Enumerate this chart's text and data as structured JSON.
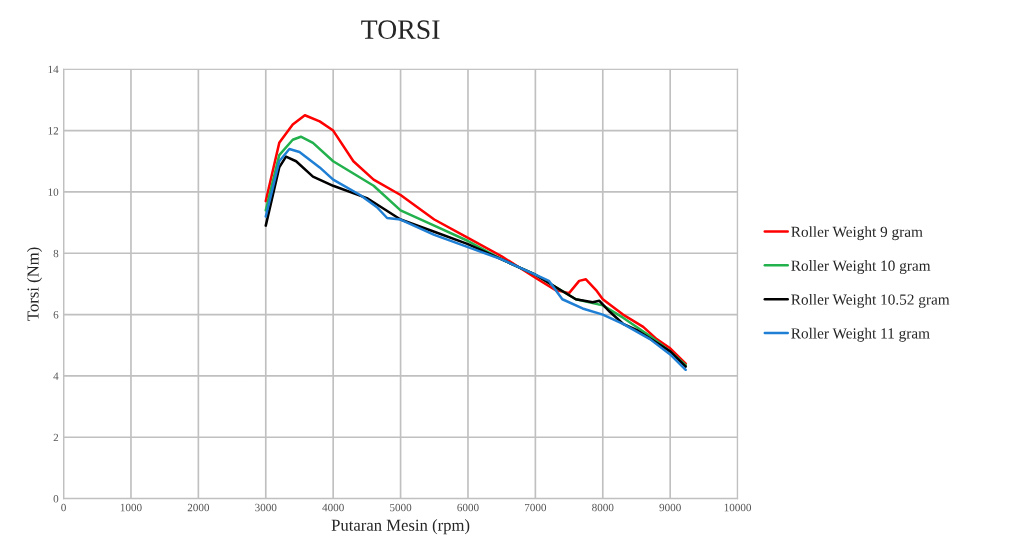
{
  "chart_data": {
    "type": "line",
    "title": "TORSI",
    "xlabel": "Putaran Mesin (rpm)",
    "ylabel": "Torsi (Nm)",
    "xlim": [
      0,
      10000
    ],
    "xticks": [
      0,
      1000,
      2000,
      3000,
      4000,
      5000,
      6000,
      7000,
      8000,
      9000,
      10000
    ],
    "ylim": [
      0,
      14
    ],
    "yticks": [
      0,
      2,
      4,
      6,
      8,
      10,
      12,
      14
    ],
    "grid": true,
    "legend": "right",
    "marker": "none",
    "line_style": "solid",
    "series": [
      {
        "name": "Roller Weight 9 gram",
        "color": "#ff0000",
        "x": [
          3000,
          3200,
          3400,
          3580,
          3800,
          4000,
          4300,
          4600,
          5000,
          5500,
          6000,
          6500,
          7000,
          7300,
          7500,
          7650,
          7750,
          7900,
          8000,
          8300,
          8600,
          8800,
          9000,
          9230
        ],
        "values": [
          9.7,
          11.6,
          12.2,
          12.5,
          12.3,
          12.0,
          11.0,
          10.4,
          9.9,
          9.1,
          8.5,
          7.9,
          7.2,
          6.8,
          6.7,
          7.1,
          7.15,
          6.8,
          6.5,
          6.0,
          5.6,
          5.2,
          4.9,
          4.4
        ]
      },
      {
        "name": "Roller Weight 10 gram",
        "color": "#22b14c",
        "x": [
          3000,
          3200,
          3400,
          3520,
          3700,
          4000,
          4300,
          4600,
          5000,
          5500,
          6000,
          6500,
          7000,
          7300,
          7600,
          8000,
          8300,
          8700,
          9000,
          9230
        ],
        "values": [
          9.4,
          11.2,
          11.7,
          11.8,
          11.6,
          11.0,
          10.6,
          10.2,
          9.4,
          8.9,
          8.4,
          7.8,
          7.3,
          6.9,
          6.5,
          6.3,
          5.9,
          5.3,
          4.8,
          4.35
        ]
      },
      {
        "name": "Roller Weight 10.52 gram",
        "color": "#000000",
        "x": [
          3000,
          3200,
          3300,
          3450,
          3700,
          4000,
          4500,
          5000,
          5500,
          6000,
          6500,
          7000,
          7300,
          7600,
          7850,
          7950,
          8100,
          8300,
          8500,
          9000,
          9230
        ],
        "values": [
          8.9,
          10.8,
          11.15,
          11.0,
          10.5,
          10.2,
          9.8,
          9.1,
          8.7,
          8.3,
          7.8,
          7.3,
          6.9,
          6.5,
          6.4,
          6.45,
          6.1,
          5.7,
          5.5,
          4.8,
          4.3
        ]
      },
      {
        "name": "Roller Weight 11 gram",
        "color": "#1f7fd4",
        "x": [
          3000,
          3200,
          3350,
          3500,
          3800,
          4000,
          4400,
          4650,
          4800,
          5000,
          5500,
          6000,
          6500,
          7000,
          7200,
          7400,
          7700,
          8000,
          8300,
          8700,
          9000,
          9230
        ],
        "values": [
          9.2,
          11.0,
          11.4,
          11.3,
          10.8,
          10.4,
          9.9,
          9.5,
          9.15,
          9.1,
          8.6,
          8.2,
          7.8,
          7.3,
          7.1,
          6.5,
          6.2,
          6.0,
          5.7,
          5.2,
          4.7,
          4.2
        ]
      }
    ]
  }
}
